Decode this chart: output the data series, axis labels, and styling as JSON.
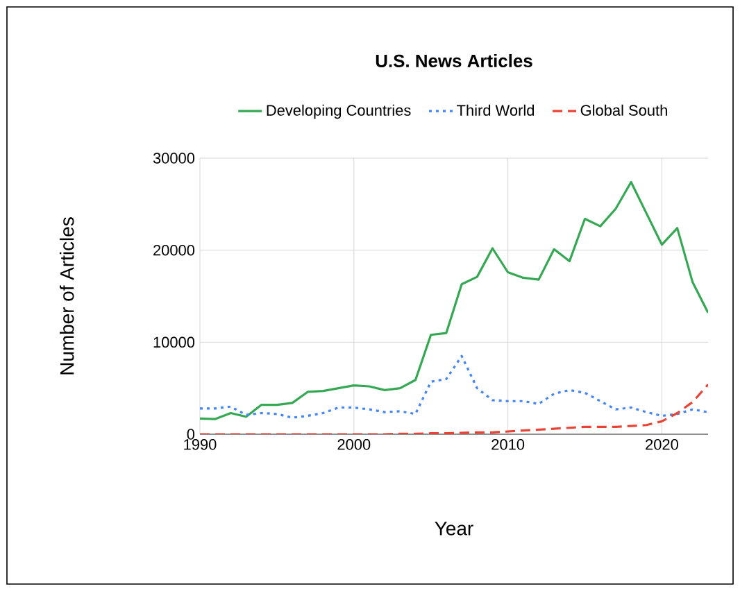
{
  "chart_data": {
    "type": "line",
    "title": "U.S. News Articles",
    "xlabel": "Year",
    "ylabel": "Number of Articles",
    "x": [
      1990,
      1991,
      1992,
      1993,
      1994,
      1995,
      1996,
      1997,
      1998,
      1999,
      2000,
      2001,
      2002,
      2003,
      2004,
      2005,
      2006,
      2007,
      2008,
      2009,
      2010,
      2011,
      2012,
      2013,
      2014,
      2015,
      2016,
      2017,
      2018,
      2019,
      2020,
      2021,
      2022,
      2023
    ],
    "series": [
      {
        "name": "Developing Countries",
        "color": "#34a853",
        "line_style": "solid",
        "values": [
          1700,
          1650,
          2300,
          1900,
          3200,
          3200,
          3400,
          4600,
          4700,
          5000,
          5300,
          5200,
          4800,
          5000,
          5900,
          10800,
          11000,
          16300,
          17100,
          20200,
          17600,
          17000,
          16800,
          20100,
          18800,
          23400,
          22600,
          24500,
          27400,
          24000,
          20600,
          22400,
          16500,
          13200
        ]
      },
      {
        "name": "Third World",
        "color": "#4285f4",
        "line_style": "dotted",
        "values": [
          2800,
          2800,
          3000,
          2100,
          2300,
          2200,
          1800,
          2000,
          2300,
          2900,
          2900,
          2700,
          2400,
          2500,
          2200,
          5700,
          6000,
          8500,
          5000,
          3700,
          3600,
          3600,
          3300,
          4400,
          4800,
          4500,
          3600,
          2700,
          2900,
          2400,
          2000,
          2200,
          2700,
          2400
        ]
      },
      {
        "name": "Global South",
        "color": "#ea4335",
        "line_style": "dashed",
        "values": [
          0,
          0,
          0,
          0,
          0,
          0,
          0,
          0,
          0,
          0,
          0,
          0,
          0,
          50,
          50,
          100,
          100,
          150,
          200,
          200,
          300,
          400,
          500,
          600,
          700,
          800,
          800,
          800,
          900,
          1000,
          1400,
          2300,
          3500,
          5400
        ]
      }
    ],
    "xlim": [
      1990,
      2023
    ],
    "xticks": [
      1990,
      2000,
      2010,
      2020
    ],
    "ylim": [
      0,
      30000
    ],
    "yticks": [
      0,
      10000,
      20000,
      30000
    ],
    "grid": true,
    "legend": "top",
    "marker": "none"
  }
}
